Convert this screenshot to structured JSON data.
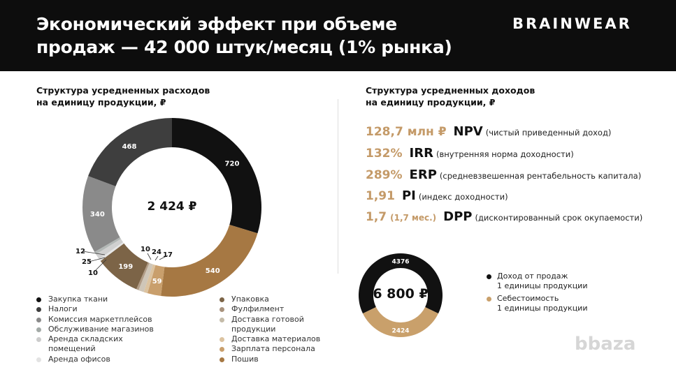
{
  "header": {
    "title": "Экономический эффект при объеме продаж — 42 000 штук/месяц (1% рынка)",
    "logo": "BRAINWEAR"
  },
  "left": {
    "subtitle_line1": "Структура усредненных расходов",
    "subtitle_line2": "на единицу продукции, ₽",
    "total": "2 424 ₽"
  },
  "right": {
    "subtitle_line1": "Структура усредненных доходов",
    "subtitle_line2": "на единицу продукции, ₽",
    "metrics": [
      {
        "value": "128,7 млн ₽",
        "extra": "",
        "key": "NPV",
        "desc": "(чистый приведенный доход)"
      },
      {
        "value": "132%",
        "extra": "",
        "key": "IRR",
        "desc": "(внутренняя норма доходности)"
      },
      {
        "value": "289%",
        "extra": "",
        "key": "ERP",
        "desc": "(средневзвешенная рентабельность капитала)"
      },
      {
        "value": "1,91",
        "extra": "",
        "key": "PI",
        "desc": "(индекс доходности)"
      },
      {
        "value": "1,7",
        "extra": "(1,7 мес.)",
        "key": "DPP",
        "desc": "(дисконтированный срок окупаемости)"
      }
    ],
    "total": "6 800 ₽"
  },
  "chart_data": [
    {
      "type": "pie",
      "title": "Структура усредненных расходов на единицу продукции, ₽",
      "center_label": "2 424 ₽",
      "slices": [
        {
          "name": "Закупка ткани",
          "value": 720,
          "color": "#111111"
        },
        {
          "name": "Пошив",
          "value": 540,
          "color": "#a67843"
        },
        {
          "name": "Зарплата персонала",
          "value": 59,
          "color": "#c99f6c"
        },
        {
          "name": "Доставка материалов",
          "value": 17,
          "color": "#dcc3a0"
        },
        {
          "name": "Доставка готовой продукции",
          "value": 24,
          "color": "#cfc6b8"
        },
        {
          "name": "Фулфилмент",
          "value": 10,
          "color": "#b19c86"
        },
        {
          "name": "Упаковка",
          "value": 199,
          "color": "#7c6447"
        },
        {
          "name": "Аренда офисов",
          "value": 10,
          "color": "#e6e6e6"
        },
        {
          "name": "Аренда складских помещений",
          "value": 25,
          "color": "#d0d0d0"
        },
        {
          "name": "Обслуживание магазинов",
          "value": 12,
          "color": "#b3b8b6"
        },
        {
          "name": "Комиссия маркетплейсов",
          "value": 340,
          "color": "#8a8a8a"
        },
        {
          "name": "Налоги",
          "value": 468,
          "color": "#3e3e3e"
        }
      ],
      "legend_left": [
        "Закупка ткани",
        "Налоги",
        "Комиссия маркетплейсов",
        "Обслуживание магазинов",
        "Аренда складских помещений",
        "Аренда офисов"
      ],
      "legend_right": [
        "Упаковка",
        "Фулфилмент",
        "Доставка готовой продукции",
        "Доставка материалов",
        "Зарплата персонала",
        "Пошив"
      ]
    },
    {
      "type": "pie",
      "title": "Структура усредненных доходов на единицу продукции, ₽",
      "center_label": "6 800 ₽",
      "slices": [
        {
          "name": "Доход от продаж 1 единицы продукции",
          "value": 4376,
          "color": "#111111"
        },
        {
          "name": "Себестоимость 1 единицы продукции",
          "value": 2424,
          "color": "#c9a06b"
        }
      ]
    }
  ],
  "legend2": [
    {
      "line1": "Доход от продаж",
      "line2": "1 единицы продукции"
    },
    {
      "line1": "Себестоимость",
      "line2": "1 единицы продукции"
    }
  ],
  "watermark": "bbaza"
}
